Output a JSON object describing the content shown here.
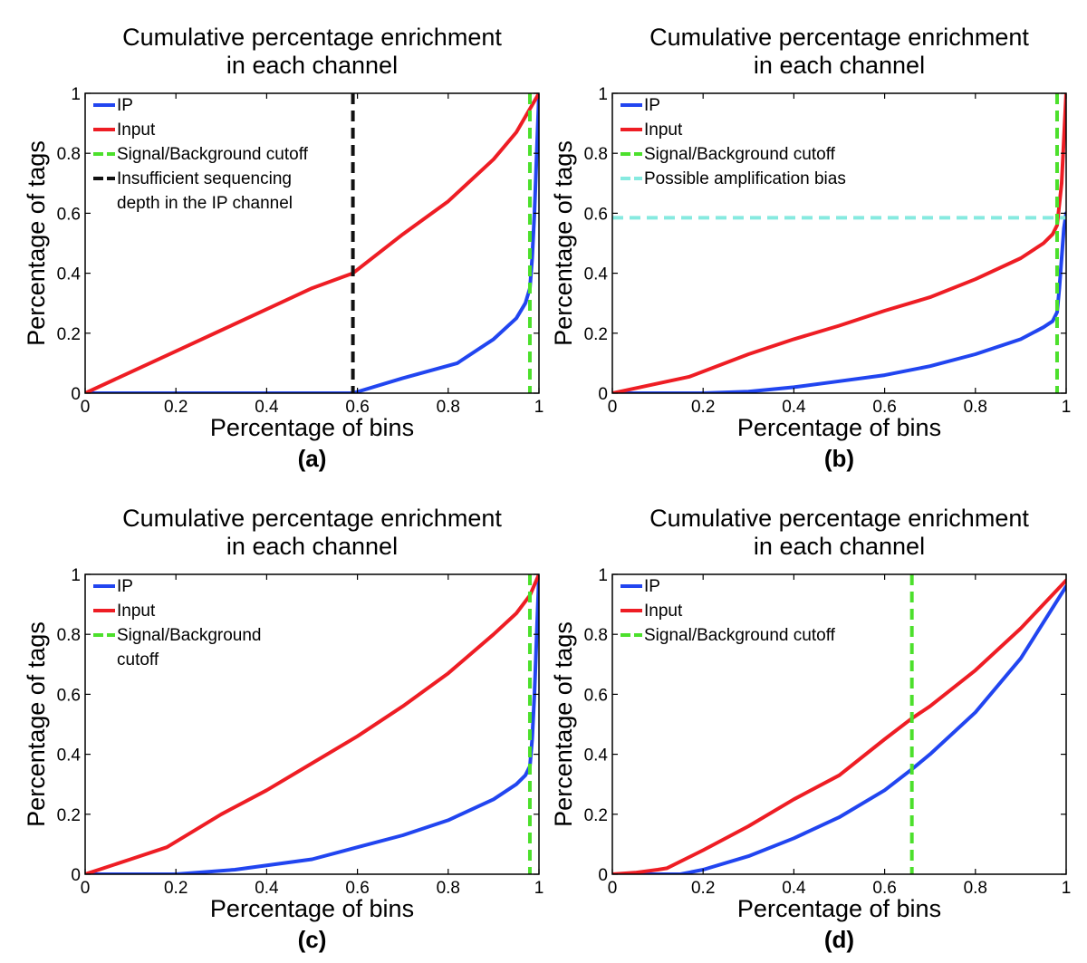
{
  "chart_data": [
    {
      "type": "line",
      "panel_label": "(a)",
      "title_lines": [
        "Cumulative percentage enrichment",
        "in each channel"
      ],
      "xlabel": "Percentage of bins",
      "ylabel": "Percentage of tags",
      "xlim": [
        0,
        1
      ],
      "ylim": [
        0,
        1
      ],
      "xticks": [
        {
          "value": 0,
          "label": "0"
        },
        {
          "value": 0.2,
          "label": "0.2"
        },
        {
          "value": 0.4,
          "label": "0.4"
        },
        {
          "value": 0.6,
          "label": "0.6"
        },
        {
          "value": 0.8,
          "label": "0.8"
        },
        {
          "value": 1,
          "label": "1"
        }
      ],
      "yticks": [
        {
          "value": 0,
          "label": "0"
        },
        {
          "value": 0.2,
          "label": "0.2"
        },
        {
          "value": 0.4,
          "label": "0.4"
        },
        {
          "value": 0.6,
          "label": "0.6"
        },
        {
          "value": 0.8,
          "label": "0.8"
        },
        {
          "value": 1,
          "label": "1"
        }
      ],
      "grid": false,
      "legend_position": "top-left",
      "series": [
        {
          "name": "IP",
          "color": "#2145f0",
          "x": [
            0,
            0.2,
            0.4,
            0.59,
            0.7,
            0.82,
            0.9,
            0.95,
            0.97,
            0.98,
            0.985,
            0.99,
            0.995,
            1.0
          ],
          "y": [
            0,
            0,
            0,
            0,
            0.05,
            0.1,
            0.18,
            0.25,
            0.3,
            0.35,
            0.45,
            0.6,
            0.8,
            1.0
          ]
        },
        {
          "name": "Input",
          "color": "#ee1d24",
          "x": [
            0,
            0.1,
            0.2,
            0.3,
            0.4,
            0.5,
            0.59,
            0.7,
            0.8,
            0.9,
            0.95,
            1.0
          ],
          "y": [
            0,
            0.07,
            0.14,
            0.21,
            0.28,
            0.35,
            0.4,
            0.53,
            0.64,
            0.78,
            0.87,
            1.0
          ]
        }
      ],
      "cutoff_lines": [
        {
          "name": "Signal/Background cutoff",
          "orientation": "vertical",
          "value": 0.98,
          "color": "#4ce02c"
        },
        {
          "name": "Insufficient sequencing depth in the IP channel",
          "orientation": "vertical",
          "value": 0.59,
          "color": "#111111"
        }
      ],
      "legend": [
        {
          "text": "IP",
          "color": "#2145f0",
          "dashed": false
        },
        {
          "text": "Input",
          "color": "#ee1d24",
          "dashed": false
        },
        {
          "text": "Signal/Background cutoff",
          "color": "#4ce02c",
          "dashed": true
        },
        {
          "text": [
            "Insufficient sequencing",
            "depth in the IP channel"
          ],
          "color": "#111111",
          "dashed": true
        }
      ]
    },
    {
      "type": "line",
      "panel_label": "(b)",
      "title_lines": [
        "Cumulative percentage enrichment",
        "in each channel"
      ],
      "xlabel": "Percentage of bins",
      "ylabel": "Percentage of tags",
      "xlim": [
        0,
        1
      ],
      "ylim": [
        0,
        1
      ],
      "xticks": [
        {
          "value": 0,
          "label": "0"
        },
        {
          "value": 0.2,
          "label": "0.2"
        },
        {
          "value": 0.4,
          "label": "0.4"
        },
        {
          "value": 0.6,
          "label": "0.6"
        },
        {
          "value": 0.8,
          "label": "0.8"
        },
        {
          "value": 1,
          "label": "1"
        }
      ],
      "yticks": [
        {
          "value": 0,
          "label": "0"
        },
        {
          "value": 0.2,
          "label": "0.2"
        },
        {
          "value": 0.4,
          "label": "0.4"
        },
        {
          "value": 0.6,
          "label": "0.6"
        },
        {
          "value": 0.8,
          "label": "0.8"
        },
        {
          "value": 1,
          "label": "1"
        }
      ],
      "grid": false,
      "legend_position": "top-left",
      "series": [
        {
          "name": "IP",
          "color": "#2145f0",
          "x": [
            0,
            0.2,
            0.3,
            0.4,
            0.5,
            0.6,
            0.7,
            0.8,
            0.9,
            0.95,
            0.97,
            0.98,
            0.985,
            0.99,
            0.995,
            1.0
          ],
          "y": [
            0,
            0,
            0.005,
            0.02,
            0.04,
            0.06,
            0.09,
            0.13,
            0.18,
            0.22,
            0.24,
            0.27,
            0.35,
            0.45,
            0.55,
            0.6
          ]
        },
        {
          "name": "Input",
          "color": "#ee1d24",
          "x": [
            0,
            0.17,
            0.3,
            0.4,
            0.5,
            0.6,
            0.7,
            0.8,
            0.9,
            0.95,
            0.97,
            0.98,
            0.99,
            1.0
          ],
          "y": [
            0,
            0.055,
            0.13,
            0.18,
            0.225,
            0.275,
            0.32,
            0.38,
            0.45,
            0.5,
            0.53,
            0.56,
            0.7,
            1.0
          ]
        }
      ],
      "cutoff_lines": [
        {
          "name": "Signal/Background cutoff",
          "orientation": "vertical",
          "value": 0.98,
          "color": "#4ce02c"
        },
        {
          "name": "Possible amplification bias",
          "orientation": "horizontal",
          "value": 0.585,
          "color": "#86eae0"
        }
      ],
      "legend": [
        {
          "text": "IP",
          "color": "#2145f0",
          "dashed": false
        },
        {
          "text": "Input",
          "color": "#ee1d24",
          "dashed": false
        },
        {
          "text": "Signal/Background cutoff",
          "color": "#4ce02c",
          "dashed": true
        },
        {
          "text": "Possible amplification bias",
          "color": "#86eae0",
          "dashed": true
        }
      ]
    },
    {
      "type": "line",
      "panel_label": "(c)",
      "title_lines": [
        "Cumulative percentage enrichment",
        "in each channel"
      ],
      "xlabel": "Percentage of bins",
      "ylabel": "Percentage of tags",
      "xlim": [
        0,
        1
      ],
      "ylim": [
        0,
        1
      ],
      "xticks": [
        {
          "value": 0,
          "label": "0"
        },
        {
          "value": 0.2,
          "label": "0.2"
        },
        {
          "value": 0.4,
          "label": "0.4"
        },
        {
          "value": 0.6,
          "label": "0.6"
        },
        {
          "value": 0.8,
          "label": "0.8"
        },
        {
          "value": 1,
          "label": "1"
        }
      ],
      "yticks": [
        {
          "value": 0,
          "label": "0"
        },
        {
          "value": 0.2,
          "label": "0.2"
        },
        {
          "value": 0.4,
          "label": "0.4"
        },
        {
          "value": 0.6,
          "label": "0.6"
        },
        {
          "value": 0.8,
          "label": "0.8"
        },
        {
          "value": 1,
          "label": "1"
        }
      ],
      "grid": false,
      "legend_position": "top-left",
      "series": [
        {
          "name": "IP",
          "color": "#2145f0",
          "x": [
            0,
            0.2,
            0.33,
            0.5,
            0.6,
            0.7,
            0.8,
            0.9,
            0.95,
            0.97,
            0.98,
            0.985,
            0.99,
            0.995,
            1.0
          ],
          "y": [
            0,
            0,
            0.015,
            0.05,
            0.09,
            0.13,
            0.18,
            0.25,
            0.3,
            0.33,
            0.36,
            0.45,
            0.6,
            0.8,
            1.0
          ]
        },
        {
          "name": "Input",
          "color": "#ee1d24",
          "x": [
            0,
            0.1,
            0.18,
            0.3,
            0.4,
            0.5,
            0.6,
            0.7,
            0.8,
            0.9,
            0.95,
            0.98,
            1.0
          ],
          "y": [
            0,
            0.05,
            0.09,
            0.2,
            0.28,
            0.37,
            0.46,
            0.56,
            0.67,
            0.8,
            0.87,
            0.93,
            1.0
          ]
        }
      ],
      "cutoff_lines": [
        {
          "name": "Signal/Background cutoff",
          "orientation": "vertical",
          "value": 0.98,
          "color": "#4ce02c"
        }
      ],
      "legend": [
        {
          "text": "IP",
          "color": "#2145f0",
          "dashed": false
        },
        {
          "text": "Input",
          "color": "#ee1d24",
          "dashed": false
        },
        {
          "text": [
            "Signal/Background",
            "cutoff"
          ],
          "color": "#4ce02c",
          "dashed": true
        }
      ]
    },
    {
      "type": "line",
      "panel_label": "(d)",
      "title_lines": [
        "Cumulative percentage enrichment",
        "in each channel"
      ],
      "xlabel": "Percentage of bins",
      "ylabel": "Percentage of tags",
      "xlim": [
        0,
        1
      ],
      "ylim": [
        0,
        1
      ],
      "xticks": [
        {
          "value": 0,
          "label": "0"
        },
        {
          "value": 0.2,
          "label": "0.2"
        },
        {
          "value": 0.4,
          "label": "0.4"
        },
        {
          "value": 0.6,
          "label": "0.6"
        },
        {
          "value": 0.8,
          "label": "0.8"
        },
        {
          "value": 1,
          "label": "1"
        }
      ],
      "yticks": [
        {
          "value": 0,
          "label": "0"
        },
        {
          "value": 0.2,
          "label": "0.2"
        },
        {
          "value": 0.4,
          "label": "0.4"
        },
        {
          "value": 0.6,
          "label": "0.6"
        },
        {
          "value": 0.8,
          "label": "0.8"
        },
        {
          "value": 1,
          "label": "1"
        }
      ],
      "grid": false,
      "legend_position": "top-left",
      "series": [
        {
          "name": "IP",
          "color": "#2145f0",
          "x": [
            0,
            0.15,
            0.2,
            0.3,
            0.4,
            0.5,
            0.6,
            0.66,
            0.7,
            0.8,
            0.9,
            1.0
          ],
          "y": [
            0,
            0,
            0.015,
            0.06,
            0.12,
            0.19,
            0.28,
            0.35,
            0.4,
            0.54,
            0.72,
            0.96
          ]
        },
        {
          "name": "Input",
          "color": "#ee1d24",
          "x": [
            0,
            0.05,
            0.1,
            0.12,
            0.2,
            0.3,
            0.4,
            0.5,
            0.6,
            0.66,
            0.7,
            0.8,
            0.9,
            1.0
          ],
          "y": [
            0,
            0.005,
            0.015,
            0.02,
            0.08,
            0.16,
            0.25,
            0.33,
            0.45,
            0.52,
            0.56,
            0.68,
            0.82,
            0.98
          ]
        }
      ],
      "cutoff_lines": [
        {
          "name": "Signal/Background cutoff",
          "orientation": "vertical",
          "value": 0.66,
          "color": "#4ce02c"
        }
      ],
      "legend": [
        {
          "text": "IP",
          "color": "#2145f0",
          "dashed": false
        },
        {
          "text": "Input",
          "color": "#ee1d24",
          "dashed": false
        },
        {
          "text": "Signal/Background cutoff",
          "color": "#4ce02c",
          "dashed": true
        }
      ]
    }
  ]
}
